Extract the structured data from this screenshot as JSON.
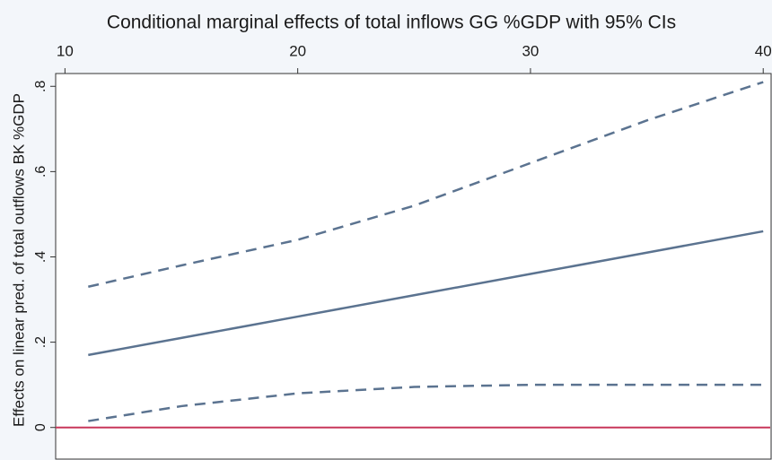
{
  "chart_data": {
    "type": "line",
    "title": "Conditional marginal effects of total inflows GG %GDP with 95% CIs",
    "ylabel": "Effects on linear pred. of total outflows BK %GDP",
    "x": [
      11,
      15,
      20,
      25,
      30,
      35,
      40
    ],
    "series": [
      {
        "color": "#5b7390",
        "style": "solid",
        "values": [
          0.17,
          0.21,
          0.26,
          0.31,
          0.36,
          0.41,
          0.46
        ]
      },
      {
        "color": "#5b7390",
        "style": "dashed",
        "values": [
          0.33,
          0.38,
          0.44,
          0.52,
          0.62,
          0.72,
          0.81
        ]
      },
      {
        "color": "#5b7390",
        "style": "dashed",
        "values": [
          0.015,
          0.05,
          0.08,
          0.095,
          0.1,
          0.1,
          0.1
        ]
      }
    ],
    "hline": {
      "value": 0,
      "color": "#c8375a"
    },
    "xaxis_position": "top",
    "xlim": [
      9.6,
      40.3
    ],
    "xticks": [
      10,
      20,
      30,
      40
    ],
    "ylim": [
      -0.07,
      0.83
    ],
    "yticks": [
      0,
      {
        "value": 0.2,
        "label": ".2"
      },
      {
        "value": 0.4,
        "label": ".4"
      },
      {
        "value": 0.6,
        "label": ".6"
      },
      {
        "value": 0.8,
        "label": ".8"
      }
    ]
  }
}
